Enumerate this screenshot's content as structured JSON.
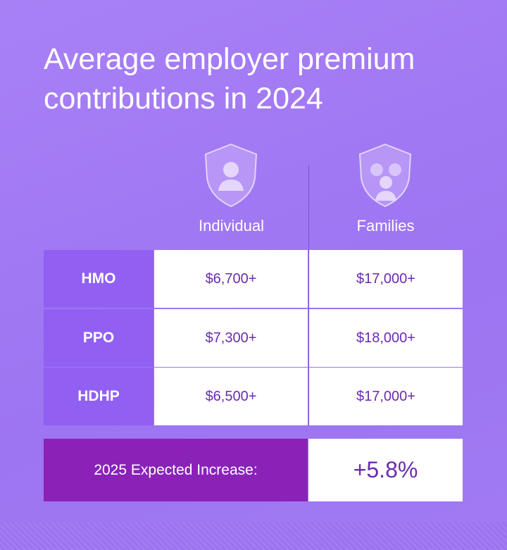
{
  "title": "Average employer premium contributions in 2024",
  "columns": [
    "Individual",
    "Families"
  ],
  "rows": [
    [
      "HMO",
      "$6,700+",
      "$17,000+"
    ],
    [
      "PPO",
      "$7,300+",
      "$18,000+"
    ],
    [
      "HDHP",
      "$6,500+",
      "$17,000+"
    ]
  ],
  "footer": {
    "label": "2025 Expected Increase:",
    "value": "+5.8%"
  }
}
